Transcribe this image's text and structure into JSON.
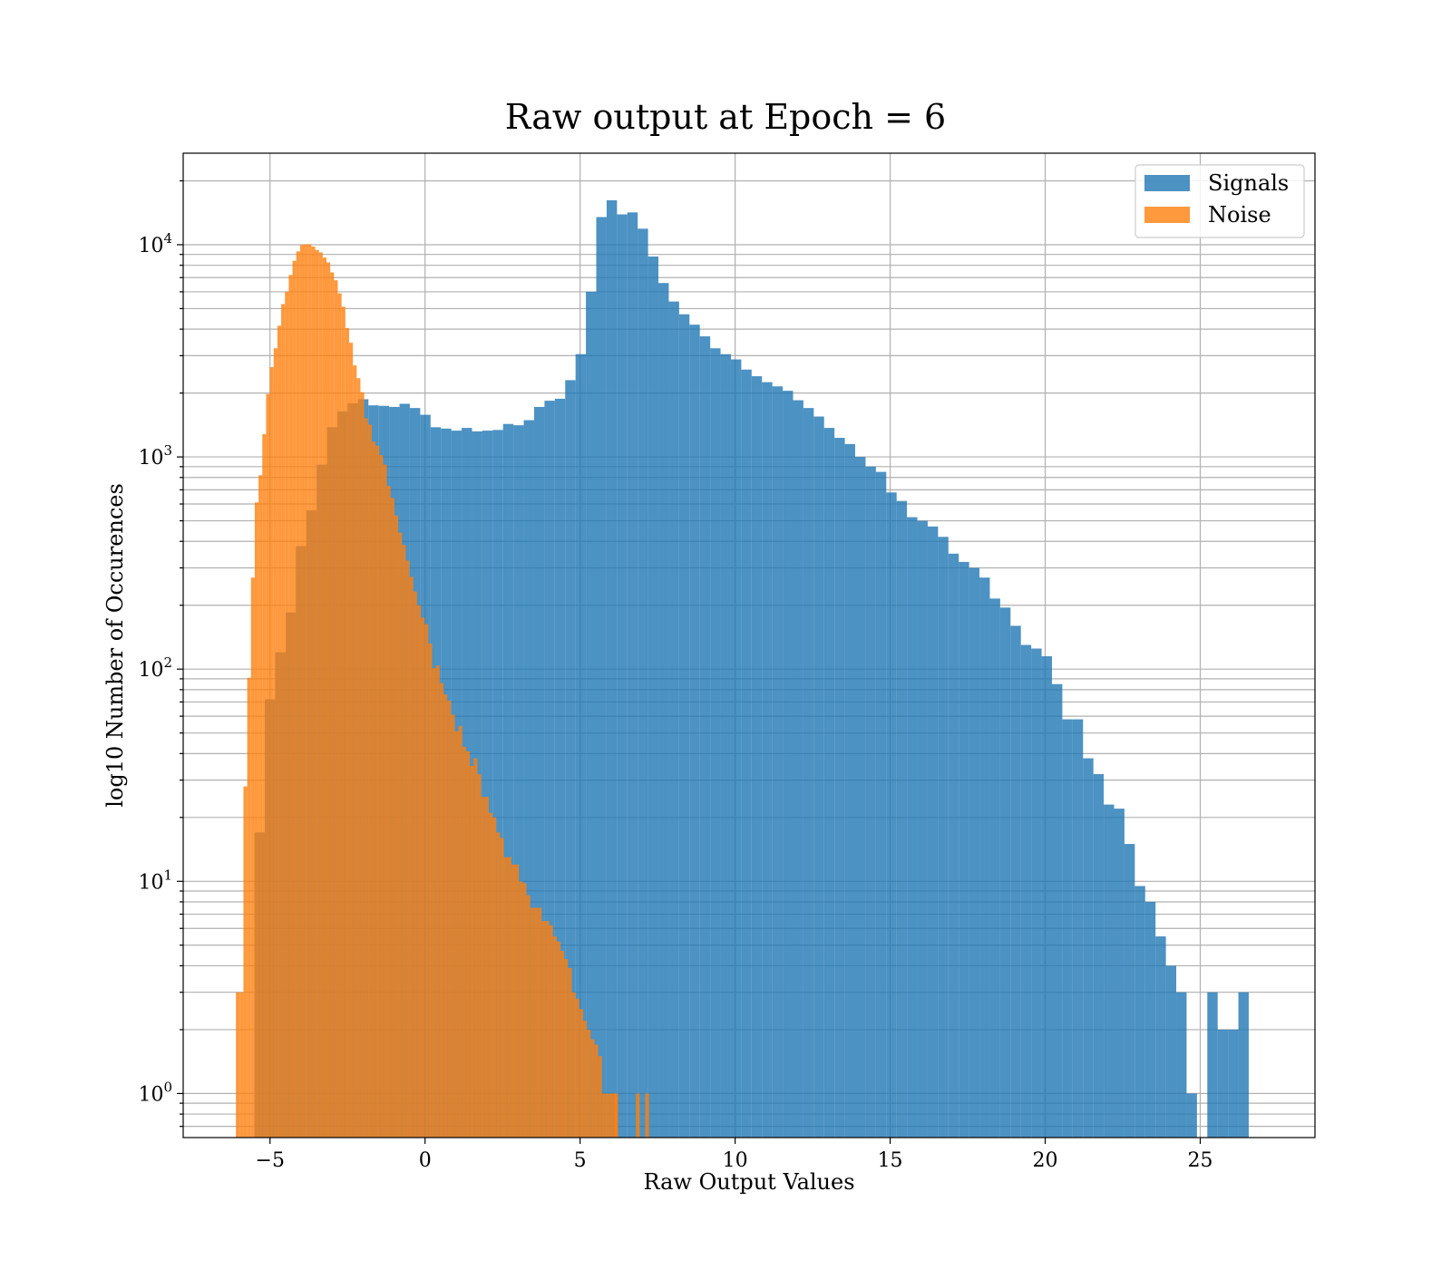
{
  "chart_data": {
    "type": "bar",
    "title": "Raw output at Epoch = 6",
    "xlabel": "Raw Output Values",
    "ylabel": "log10 Number of Occurences",
    "xlim": [
      -7.8,
      28.7
    ],
    "ylim": [
      0.62,
      27000
    ],
    "yscale": "log",
    "grid": true,
    "legend_position": "top-right",
    "x_ticks": [
      -5,
      0,
      5,
      10,
      15,
      20,
      25
    ],
    "x_tick_labels": [
      "−5",
      "0",
      "5",
      "10",
      "15",
      "20",
      "25"
    ],
    "y_ticks": [
      1,
      10,
      100,
      1000,
      10000
    ],
    "y_tick_labels": [
      {
        "base": "10",
        "exp": "0"
      },
      {
        "base": "10",
        "exp": "1"
      },
      {
        "base": "10",
        "exp": "2"
      },
      {
        "base": "10",
        "exp": "3"
      },
      {
        "base": "10",
        "exp": "4"
      }
    ],
    "series": [
      {
        "name": "Signals",
        "color": "#1f77b4",
        "opacity": 0.8,
        "bin_start": -5.5,
        "bin_width": 0.334,
        "values": [
          17,
          72,
          120,
          185,
          380,
          560,
          920,
          1380,
          1640,
          1790,
          1870,
          1750,
          1740,
          1720,
          1780,
          1700,
          1580,
          1380,
          1360,
          1330,
          1370,
          1320,
          1330,
          1340,
          1430,
          1410,
          1490,
          1720,
          1840,
          1880,
          2300,
          3050,
          6000,
          13500,
          16200,
          13900,
          14200,
          11900,
          8800,
          6600,
          5400,
          4700,
          4200,
          3700,
          3250,
          3050,
          2880,
          2580,
          2400,
          2250,
          2150,
          2050,
          1850,
          1700,
          1550,
          1370,
          1230,
          1150,
          1000,
          900,
          850,
          680,
          620,
          520,
          500,
          470,
          420,
          350,
          320,
          300,
          270,
          215,
          195,
          160,
          130,
          125,
          115,
          85,
          58,
          58,
          38,
          32,
          23,
          22,
          15,
          9.5,
          8,
          5.5,
          4,
          3,
          1,
          0,
          3,
          2,
          2,
          3
        ]
      },
      {
        "name": "Noise",
        "color": "#ff7f0e",
        "opacity": 0.8,
        "bin_start": -6.1,
        "bin_width": 0.1217,
        "values": [
          3,
          3,
          28,
          91,
          270,
          610,
          820,
          1280,
          1980,
          2650,
          3250,
          4150,
          5250,
          6000,
          7200,
          8400,
          9300,
          9980,
          10050,
          10050,
          9800,
          9450,
          9200,
          8700,
          8250,
          7400,
          6800,
          5900,
          5100,
          4050,
          3450,
          2700,
          2350,
          2020,
          1520,
          1420,
          1180,
          1130,
          1020,
          920,
          730,
          640,
          530,
          440,
          385,
          325,
          272,
          232,
          200,
          175,
          163,
          132,
          101,
          104,
          86,
          76,
          71,
          61,
          51,
          54,
          43,
          41,
          35,
          38,
          32,
          25,
          25,
          21,
          20,
          17,
          16,
          13,
          13,
          12,
          12,
          10,
          9.8,
          8.6,
          7.5,
          7.5,
          7.5,
          6.5,
          6.5,
          6.2,
          5.5,
          5.2,
          4.7,
          4.3,
          3.9,
          3,
          2.8,
          2.5,
          2.2,
          2,
          1.8,
          1.7,
          1.5,
          1,
          1,
          1,
          1
        ]
      }
    ],
    "noise_extra_bars": [
      {
        "x": 6.1,
        "value": 1
      },
      {
        "x": 6.8,
        "value": 1
      },
      {
        "x": 7.1,
        "value": 1
      }
    ]
  }
}
